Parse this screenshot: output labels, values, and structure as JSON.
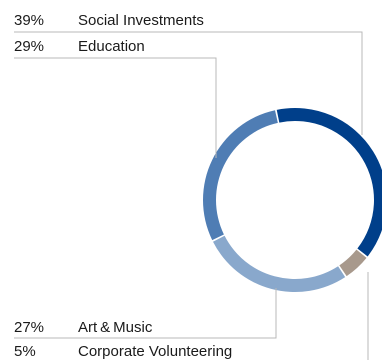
{
  "chart_data": {
    "type": "pie",
    "variant": "donut",
    "title": "",
    "legend_placement": "left",
    "slices": [
      {
        "label": "Social Investments",
        "pct_label": "39%",
        "value": 39,
        "color": "#003f8a"
      },
      {
        "label": "Corporate Volunteering",
        "pct_label": "5%",
        "value": 5,
        "color": "#a8998c"
      },
      {
        "label": "Art & Music",
        "pct_label": "27%",
        "value": 27,
        "color": "#89a8cc"
      },
      {
        "label": "Education",
        "pct_label": "29%",
        "value": 29,
        "color": "#4f7db4"
      }
    ]
  }
}
